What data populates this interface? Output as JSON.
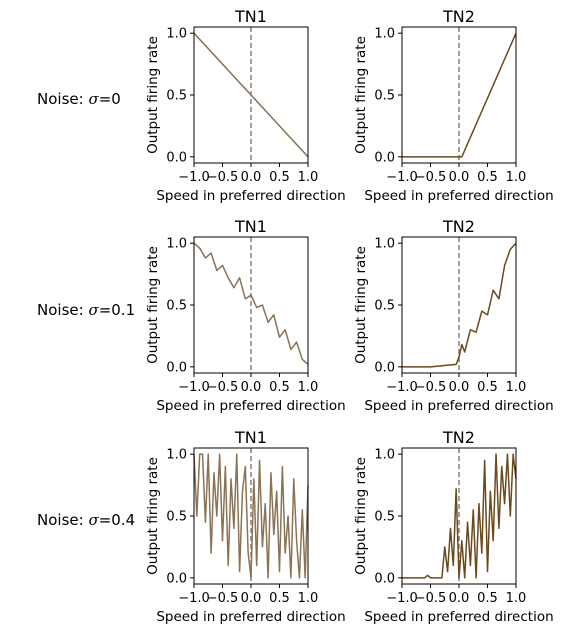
{
  "figure": {
    "rows": [
      {
        "label_prefix": "Noise: ",
        "sigma_symbol": "σ",
        "label_suffix": "=0"
      },
      {
        "label_prefix": "Noise: ",
        "sigma_symbol": "σ",
        "label_suffix": "=0.1"
      },
      {
        "label_prefix": "Noise: ",
        "sigma_symbol": "σ",
        "label_suffix": "=0.4"
      }
    ]
  },
  "colors": {
    "tn1": "#8b7355",
    "tn2": "#6b4a1e",
    "dashed": "#808080"
  },
  "chart_data": [
    {
      "type": "line",
      "title": "TN1",
      "xlabel": "Speed in preferred direction",
      "ylabel": "Output firing rate",
      "xlim": [
        -1,
        1
      ],
      "ylim": [
        0,
        1
      ],
      "xticks": [
        "−1.0",
        "−0.5",
        "0.0",
        "0.5",
        "1.0"
      ],
      "yticks": [
        "0.0",
        "0.5",
        "1.0"
      ],
      "vline_x": 0,
      "color": "tn1",
      "x": [
        -1,
        1
      ],
      "y": [
        1,
        0
      ]
    },
    {
      "type": "line",
      "title": "TN2",
      "xlabel": "Speed in preferred direction",
      "ylabel": "Output firing rate",
      "xlim": [
        -1,
        1
      ],
      "ylim": [
        0,
        1
      ],
      "xticks": [
        "−1.0",
        "−0.5",
        "0.0",
        "0.5",
        "1.0"
      ],
      "yticks": [
        "0.0",
        "0.5",
        "1.0"
      ],
      "vline_x": 0,
      "color": "tn2",
      "x": [
        -1,
        0.05,
        1
      ],
      "y": [
        0,
        0,
        1
      ]
    },
    {
      "type": "line",
      "title": "TN1",
      "xlabel": "Speed in preferred direction",
      "ylabel": "Output firing rate",
      "xlim": [
        -1,
        1
      ],
      "ylim": [
        0,
        1
      ],
      "xticks": [
        "−1.0",
        "−0.5",
        "0.0",
        "0.5",
        "1.0"
      ],
      "yticks": [
        "0.0",
        "0.5",
        "1.0"
      ],
      "vline_x": 0,
      "color": "tn1",
      "x": [
        -1.0,
        -0.9,
        -0.8,
        -0.7,
        -0.6,
        -0.5,
        -0.4,
        -0.3,
        -0.2,
        -0.1,
        0.0,
        0.1,
        0.2,
        0.3,
        0.4,
        0.5,
        0.6,
        0.7,
        0.8,
        0.9,
        1.0
      ],
      "y": [
        1.0,
        0.96,
        0.88,
        0.92,
        0.78,
        0.82,
        0.72,
        0.64,
        0.72,
        0.55,
        0.58,
        0.48,
        0.5,
        0.36,
        0.42,
        0.24,
        0.3,
        0.14,
        0.2,
        0.06,
        0.02
      ]
    },
    {
      "type": "line",
      "title": "TN2",
      "xlabel": "Speed in preferred direction",
      "ylabel": "Output firing rate",
      "xlim": [
        -1,
        1
      ],
      "ylim": [
        0,
        1
      ],
      "xticks": [
        "−1.0",
        "−0.5",
        "0.0",
        "0.5",
        "1.0"
      ],
      "yticks": [
        "0.0",
        "0.5",
        "1.0"
      ],
      "vline_x": 0,
      "color": "tn2",
      "x": [
        -1.0,
        -0.5,
        -0.05,
        0.0,
        0.05,
        0.1,
        0.2,
        0.3,
        0.4,
        0.5,
        0.6,
        0.7,
        0.8,
        0.9,
        1.0
      ],
      "y": [
        0,
        0,
        0.02,
        0.08,
        0.18,
        0.12,
        0.3,
        0.28,
        0.45,
        0.42,
        0.62,
        0.55,
        0.82,
        0.95,
        1.0
      ]
    },
    {
      "type": "line",
      "title": "TN1",
      "xlabel": "Speed in preferred direction",
      "ylabel": "Output firing rate",
      "xlim": [
        -1,
        1
      ],
      "ylim": [
        0,
        1
      ],
      "xticks": [
        "−1.0",
        "−0.5",
        "0.0",
        "0.5",
        "1.0"
      ],
      "yticks": [
        "0.0",
        "0.5",
        "1.0"
      ],
      "vline_x": 0,
      "color": "tn1",
      "x": [
        -1.0,
        -0.95,
        -0.9,
        -0.85,
        -0.8,
        -0.75,
        -0.7,
        -0.65,
        -0.6,
        -0.55,
        -0.5,
        -0.45,
        -0.4,
        -0.35,
        -0.3,
        -0.25,
        -0.2,
        -0.15,
        -0.1,
        -0.05,
        0.0,
        0.05,
        0.1,
        0.15,
        0.2,
        0.25,
        0.3,
        0.35,
        0.4,
        0.45,
        0.5,
        0.55,
        0.6,
        0.65,
        0.7,
        0.75,
        0.8,
        0.85,
        0.9,
        0.95,
        1.0
      ],
      "y": [
        1.0,
        0.5,
        1.0,
        1.0,
        0.45,
        1.0,
        0.2,
        0.85,
        0.5,
        1.0,
        0.3,
        0.9,
        0.1,
        0.8,
        0.4,
        1.0,
        0.05,
        0.7,
        0.9,
        0.2,
        0.0,
        0.8,
        0.1,
        0.95,
        0.25,
        0.6,
        0.0,
        0.85,
        0.35,
        0.7,
        0.05,
        0.9,
        0.2,
        0.5,
        0.0,
        0.8,
        0.3,
        0.0,
        0.55,
        0.0,
        0.75
      ]
    },
    {
      "type": "line",
      "title": "TN2",
      "xlabel": "Speed in preferred direction",
      "ylabel": "Output firing rate",
      "xlim": [
        -1,
        1
      ],
      "ylim": [
        0,
        1
      ],
      "xticks": [
        "−1.0",
        "−0.5",
        "0.0",
        "0.5",
        "1.0"
      ],
      "yticks": [
        "0.0",
        "0.5",
        "1.0"
      ],
      "vline_x": 0,
      "color": "tn2",
      "x": [
        -1.0,
        -0.6,
        -0.55,
        -0.5,
        -0.3,
        -0.25,
        -0.2,
        -0.15,
        -0.1,
        -0.05,
        0.0,
        0.05,
        0.1,
        0.15,
        0.2,
        0.25,
        0.3,
        0.35,
        0.4,
        0.45,
        0.5,
        0.55,
        0.6,
        0.65,
        0.7,
        0.75,
        0.8,
        0.85,
        0.9,
        0.95,
        1.0
      ],
      "y": [
        0,
        0,
        0.02,
        0,
        0,
        0.25,
        0.05,
        0.4,
        0.1,
        0.72,
        0.0,
        0.3,
        0.0,
        0.45,
        0.1,
        0.55,
        0.0,
        0.6,
        0.2,
        0.95,
        0.05,
        0.7,
        0.3,
        1.0,
        0.4,
        0.9,
        0.6,
        1.0,
        0.5,
        1.0,
        0.8
      ]
    }
  ]
}
